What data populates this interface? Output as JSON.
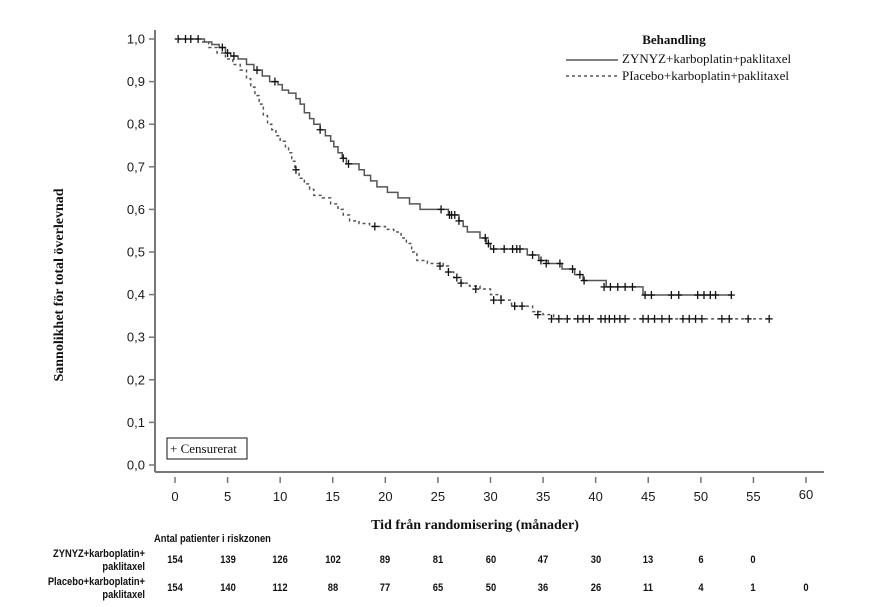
{
  "chart_data": {
    "type": "line",
    "subtype": "kaplan-meier-step",
    "title": "",
    "xlabel": "Tid från randomisering  (månader)",
    "ylabel": "Sannolikhet för total överlevnad",
    "xlim": [
      0,
      60
    ],
    "ylim": [
      0,
      1
    ],
    "x_ticks": [
      "0",
      "5",
      "10",
      "15",
      "20",
      "25",
      "30",
      "35",
      "40",
      "45",
      "50",
      "55",
      "60"
    ],
    "x_tick_values": [
      0,
      5,
      10,
      15,
      20,
      25,
      30,
      35,
      40,
      45,
      50,
      55,
      60
    ],
    "y_ticks": [
      "0,0",
      "0,1",
      "0,2",
      "0,3",
      "0,4",
      "0,5",
      "0,6",
      "0,7",
      "0,8",
      "0,9",
      "1,0"
    ],
    "y_tick_values": [
      0,
      0.1,
      0.2,
      0.3,
      0.4,
      0.5,
      0.6,
      0.7,
      0.8,
      0.9,
      1.0
    ],
    "grid": false,
    "legend": {
      "title": "Behandling",
      "placement": "top-right",
      "censor_note": "+ Censurerat",
      "censor_note_placement": "bottom-left"
    },
    "series": [
      {
        "name": "ZYNYZ+karboplatin+paklitaxel",
        "style": "solid",
        "color": "#555555",
        "steps": [
          [
            0,
            1.0
          ],
          [
            2.8,
            0.993
          ],
          [
            3.5,
            0.987
          ],
          [
            4.2,
            0.98
          ],
          [
            4.8,
            0.967
          ],
          [
            5.3,
            0.96
          ],
          [
            6,
            0.953
          ],
          [
            6.8,
            0.94
          ],
          [
            7.5,
            0.927
          ],
          [
            8.3,
            0.913
          ],
          [
            9,
            0.9
          ],
          [
            9.8,
            0.893
          ],
          [
            10.2,
            0.88
          ],
          [
            10.8,
            0.873
          ],
          [
            11.5,
            0.86
          ],
          [
            11.9,
            0.847
          ],
          [
            12.3,
            0.827
          ],
          [
            12.8,
            0.813
          ],
          [
            13.2,
            0.8
          ],
          [
            13.8,
            0.787
          ],
          [
            14.3,
            0.773
          ],
          [
            14.8,
            0.76
          ],
          [
            15.1,
            0.747
          ],
          [
            15.5,
            0.733
          ],
          [
            15.9,
            0.72
          ],
          [
            16.3,
            0.707
          ],
          [
            17.5,
            0.693
          ],
          [
            18,
            0.68
          ],
          [
            18.6,
            0.667
          ],
          [
            19.2,
            0.653
          ],
          [
            20.2,
            0.64
          ],
          [
            21.2,
            0.627
          ],
          [
            22.3,
            0.613
          ],
          [
            23.3,
            0.6
          ],
          [
            26,
            0.587
          ],
          [
            27,
            0.573
          ],
          [
            27.4,
            0.56
          ],
          [
            27.8,
            0.547
          ],
          [
            29,
            0.533
          ],
          [
            29.6,
            0.52
          ],
          [
            30,
            0.507
          ],
          [
            33.5,
            0.493
          ],
          [
            34.6,
            0.48
          ],
          [
            35.5,
            0.473
          ],
          [
            36.8,
            0.46
          ],
          [
            38,
            0.447
          ],
          [
            38.8,
            0.433
          ],
          [
            41,
            0.418
          ],
          [
            44.5,
            0.399
          ],
          [
            53,
            0.399
          ]
        ],
        "censored": [
          [
            0.3,
            1.0
          ],
          [
            1.0,
            1.0
          ],
          [
            1.5,
            1.0
          ],
          [
            2.2,
            1.0
          ],
          [
            4.5,
            0.98
          ],
          [
            5.0,
            0.967
          ],
          [
            5.6,
            0.96
          ],
          [
            7.8,
            0.927
          ],
          [
            9.5,
            0.9
          ],
          [
            13.8,
            0.787
          ],
          [
            16.0,
            0.72
          ],
          [
            16.5,
            0.707
          ],
          [
            25.3,
            0.6
          ],
          [
            26.1,
            0.587
          ],
          [
            26.3,
            0.587
          ],
          [
            26.6,
            0.587
          ],
          [
            27.0,
            0.573
          ],
          [
            29.5,
            0.533
          ],
          [
            29.8,
            0.52
          ],
          [
            30.3,
            0.507
          ],
          [
            31.3,
            0.507
          ],
          [
            32.1,
            0.507
          ],
          [
            32.5,
            0.507
          ],
          [
            32.8,
            0.507
          ],
          [
            34.0,
            0.493
          ],
          [
            34.8,
            0.48
          ],
          [
            35.3,
            0.473
          ],
          [
            36.6,
            0.473
          ],
          [
            37.8,
            0.46
          ],
          [
            38.5,
            0.447
          ],
          [
            38.9,
            0.433
          ],
          [
            40.8,
            0.418
          ],
          [
            41.4,
            0.418
          ],
          [
            42.1,
            0.418
          ],
          [
            42.8,
            0.418
          ],
          [
            43.5,
            0.418
          ],
          [
            44.7,
            0.399
          ],
          [
            45.3,
            0.399
          ],
          [
            47.2,
            0.399
          ],
          [
            47.9,
            0.399
          ],
          [
            49.7,
            0.399
          ],
          [
            50.3,
            0.399
          ],
          [
            50.9,
            0.399
          ],
          [
            51.4,
            0.399
          ],
          [
            52.9,
            0.399
          ]
        ]
      },
      {
        "name": "Placebo+karboplatin+paklitaxel",
        "legend_label": "PIacebo+karboplatin+paklitaxel",
        "style": "dashed",
        "color": "#555555",
        "steps": [
          [
            0,
            1.0
          ],
          [
            2.5,
            0.993
          ],
          [
            3.2,
            0.98
          ],
          [
            4.0,
            0.967
          ],
          [
            4.8,
            0.953
          ],
          [
            5.5,
            0.94
          ],
          [
            6.2,
            0.927
          ],
          [
            6.8,
            0.907
          ],
          [
            7.2,
            0.887
          ],
          [
            7.6,
            0.867
          ],
          [
            8.0,
            0.847
          ],
          [
            8.4,
            0.82
          ],
          [
            8.8,
            0.8
          ],
          [
            9.2,
            0.787
          ],
          [
            9.6,
            0.773
          ],
          [
            10.0,
            0.76
          ],
          [
            10.5,
            0.747
          ],
          [
            10.8,
            0.733
          ],
          [
            11.1,
            0.713
          ],
          [
            11.4,
            0.693
          ],
          [
            11.8,
            0.673
          ],
          [
            12.3,
            0.66
          ],
          [
            12.8,
            0.647
          ],
          [
            13.2,
            0.633
          ],
          [
            14.0,
            0.627
          ],
          [
            14.8,
            0.613
          ],
          [
            15.5,
            0.6
          ],
          [
            16.0,
            0.587
          ],
          [
            16.6,
            0.573
          ],
          [
            17.5,
            0.567
          ],
          [
            18.5,
            0.56
          ],
          [
            20.0,
            0.553
          ],
          [
            20.8,
            0.547
          ],
          [
            21.5,
            0.533
          ],
          [
            22.0,
            0.52
          ],
          [
            22.5,
            0.5
          ],
          [
            23.0,
            0.48
          ],
          [
            24.0,
            0.473
          ],
          [
            25.5,
            0.467
          ],
          [
            26.0,
            0.453
          ],
          [
            26.5,
            0.44
          ],
          [
            27.2,
            0.427
          ],
          [
            28.0,
            0.42
          ],
          [
            29.0,
            0.413
          ],
          [
            30.0,
            0.4
          ],
          [
            31.0,
            0.387
          ],
          [
            32.0,
            0.373
          ],
          [
            34.0,
            0.36
          ],
          [
            35.0,
            0.353
          ],
          [
            36.0,
            0.343
          ],
          [
            56.5,
            0.343
          ]
        ],
        "censored": [
          [
            11.5,
            0.693
          ],
          [
            19.0,
            0.56
          ],
          [
            25.2,
            0.467
          ],
          [
            26.0,
            0.453
          ],
          [
            26.8,
            0.44
          ],
          [
            27.2,
            0.427
          ],
          [
            28.6,
            0.413
          ],
          [
            30.3,
            0.387
          ],
          [
            31.0,
            0.387
          ],
          [
            32.3,
            0.373
          ],
          [
            33.0,
            0.373
          ],
          [
            34.5,
            0.353
          ],
          [
            35.8,
            0.343
          ],
          [
            36.5,
            0.343
          ],
          [
            37.3,
            0.343
          ],
          [
            38.3,
            0.343
          ],
          [
            38.8,
            0.343
          ],
          [
            39.4,
            0.343
          ],
          [
            40.5,
            0.343
          ],
          [
            40.9,
            0.343
          ],
          [
            41.3,
            0.343
          ],
          [
            41.8,
            0.343
          ],
          [
            42.3,
            0.343
          ],
          [
            42.8,
            0.343
          ],
          [
            44.5,
            0.343
          ],
          [
            45.0,
            0.343
          ],
          [
            45.6,
            0.343
          ],
          [
            46.3,
            0.343
          ],
          [
            47.0,
            0.343
          ],
          [
            48.3,
            0.343
          ],
          [
            48.9,
            0.343
          ],
          [
            49.5,
            0.343
          ],
          [
            50.1,
            0.343
          ],
          [
            52.0,
            0.343
          ],
          [
            52.7,
            0.343
          ],
          [
            54.5,
            0.343
          ],
          [
            56.5,
            0.343
          ]
        ]
      }
    ],
    "risk_table": {
      "title": "Antal patienter i riskzonen",
      "rows": [
        {
          "label_line1": "ZYNYZ+karboplatin+",
          "label_line2": "paklitaxel",
          "values": [
            "154",
            "139",
            "126",
            "102",
            "89",
            "81",
            "60",
            "47",
            "30",
            "13",
            "6",
            "0",
            ""
          ]
        },
        {
          "label_line1": "Placebo+karboplatin+",
          "label_line2": "paklitaxel",
          "values": [
            "154",
            "140",
            "112",
            "88",
            "77",
            "65",
            "50",
            "36",
            "26",
            "11",
            "4",
            "1",
            "0"
          ]
        }
      ]
    }
  }
}
